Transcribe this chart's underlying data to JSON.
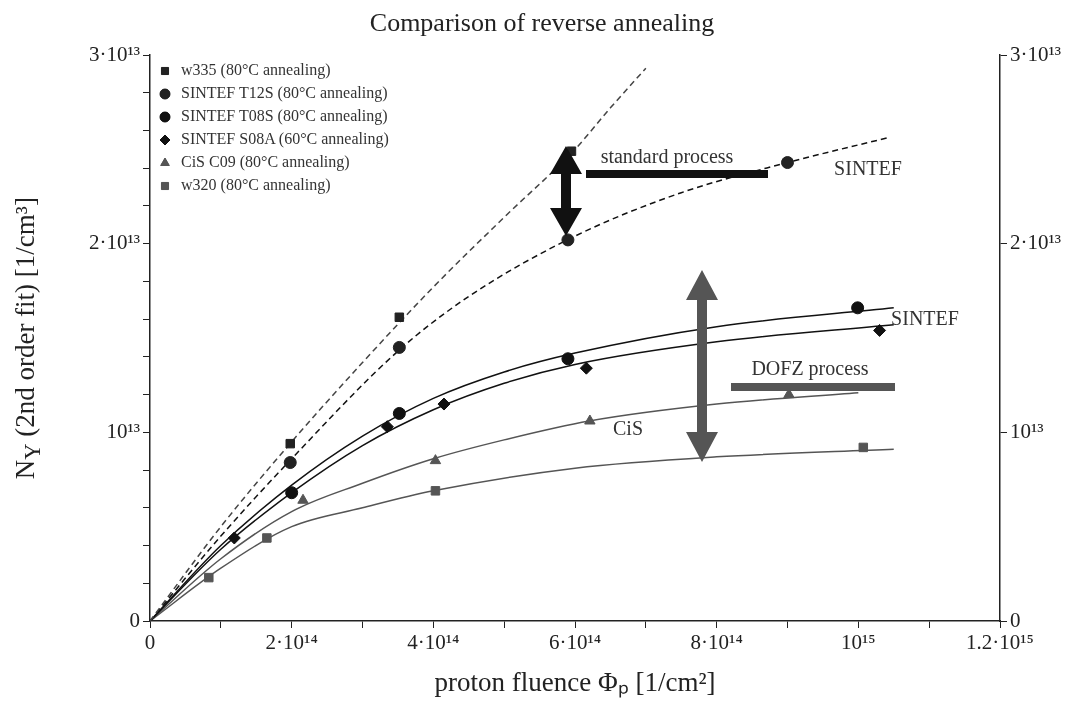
{
  "chart_data": {
    "type": "scatter",
    "title": "Comparison of reverse annealing",
    "xlabel": "proton fluence Φₚ [1/cm²]",
    "ylabel": "N$_{Y}$ (2nd order fit) [1/cm³]",
    "xlim": [
      0,
      1200000000000000.0
    ],
    "xticks": [
      0,
      {
        "value": 100000000000000.0,
        "label": null
      },
      {
        "value": 200000000000000.0,
        "label": "2·10¹⁴"
      },
      {
        "value": 300000000000000.0,
        "label": null
      },
      {
        "value": 400000000000000.0,
        "label": "4·10¹⁴"
      },
      {
        "value": 500000000000000.0,
        "label": null
      },
      {
        "value": 600000000000000.0,
        "label": "6·10¹⁴"
      },
      {
        "value": 700000000000000.0,
        "label": null
      },
      {
        "value": 800000000000000.0,
        "label": "8·10¹⁴"
      },
      {
        "value": 900000000000000.0,
        "label": null
      },
      {
        "value": 1000000000000000.0,
        "label": "10¹⁵"
      },
      {
        "value": 1100000000000000.0,
        "label": null
      },
      {
        "value": 1200000000000000.0,
        "label": "1.2·10¹⁵"
      }
    ],
    "ylim": [
      0,
      30000000000000.0
    ],
    "yticks": [
      0,
      {
        "value": 2000000000000.0,
        "label": null
      },
      {
        "value": 4000000000000.0,
        "label": null
      },
      {
        "value": 6000000000000.0,
        "label": null
      },
      {
        "value": 8000000000000.0,
        "label": null
      },
      {
        "value": 10000000000000.0,
        "label": "10¹³"
      },
      {
        "value": 12000000000000.0,
        "label": null
      },
      {
        "value": 14000000000000.0,
        "label": null
      },
      {
        "value": 16000000000000.0,
        "label": null
      },
      {
        "value": 18000000000000.0,
        "label": null
      },
      {
        "value": 20000000000000.0,
        "label": "2·10¹³"
      },
      {
        "value": 22000000000000.0,
        "label": null
      },
      {
        "value": 24000000000000.0,
        "label": null
      },
      {
        "value": 26000000000000.0,
        "label": null
      },
      {
        "value": 28000000000000.0,
        "label": null
      },
      {
        "value": 30000000000000.0,
        "label": "3·10¹³"
      }
    ],
    "y2lim": [
      0,
      30000000000000.0
    ],
    "y2ticks": [
      0,
      {
        "value": 10000000000000.0,
        "label": "10¹³"
      },
      {
        "value": 20000000000000.0,
        "label": "2·10¹³"
      },
      {
        "value": 30000000000000.0,
        "label": "3·10¹³"
      }
    ],
    "grid": false,
    "legend": "top left",
    "series": [
      {
        "name": "w335 (80°C annealing)",
        "marker": "square",
        "color": "#222222",
        "x": [
          198000000000000.0,
          352000000000000.0,
          595000000000000.0
        ],
        "values": [
          9400000000000.0,
          16100000000000.0,
          24900000000000.0
        ]
      },
      {
        "name": "SINTEF T12S (80°C annealing)",
        "marker": "circle",
        "color": "#222222",
        "x": [
          198000000000000.0,
          352000000000000.0,
          590000000000000.0,
          900000000000000.0
        ],
        "values": [
          8400000000000.0,
          14500000000000.0,
          20200000000000.0,
          24300000000000.0
        ]
      },
      {
        "name": "SINTEF T08S (80°C annealing)",
        "marker": "circle",
        "color": "#111111",
        "x": [
          200000000000000.0,
          352000000000000.0,
          590000000000000.0,
          999000000000000.0
        ],
        "values": [
          6800000000000.0,
          11000000000000.0,
          13900000000000.0,
          16600000000000.0
        ]
      },
      {
        "name": "SINTEF S08A (60°C annealing)",
        "marker": "diamond",
        "color": "#111111",
        "x": [
          119000000000000.0,
          335000000000000.0,
          415000000000000.0,
          616000000000000.0,
          1030000000000000.0
        ],
        "values": [
          4400000000000.0,
          10300000000000.0,
          11500000000000.0,
          13400000000000.0,
          15400000000000.0
        ]
      },
      {
        "name": "CiS C09 (80°C annealing)",
        "marker": "triangle",
        "color": "#555555",
        "x": [
          216000000000000.0,
          403000000000000.0,
          621000000000000.0,
          902000000000000.0
        ],
        "values": [
          6400000000000.0,
          8500000000000.0,
          10600000000000.0,
          12000000000000.0
        ]
      },
      {
        "name": "w320 (80°C annealing)",
        "marker": "square",
        "color": "#555555",
        "x": [
          83000000000000.0,
          165000000000000.0,
          403000000000000.0,
          1007000000000000.0
        ],
        "values": [
          2300000000000.0,
          4400000000000.0,
          6900000000000.0,
          9200000000000.0
        ]
      },
      {
        "type": "line",
        "marker": "none",
        "line_style": "dashed",
        "color": "#444444",
        "x": [
          0,
          100000000000000.0,
          200000000000000.0,
          300000000000000.0,
          400000000000000.0,
          500000000000000.0,
          600000000000000.0,
          650000000000000.0,
          700000000000000.0
        ],
        "values": [
          0,
          5000000000000.0,
          9500000000000.0,
          13700000000000.0,
          17700000000000.0,
          21400000000000.0,
          25000000000000.0,
          27200000000000.0,
          29300000000000.0
        ]
      },
      {
        "type": "line",
        "marker": "none",
        "line_style": "dashed",
        "color": "#111111",
        "x": [
          0,
          100000000000000.0,
          200000000000000.0,
          350000000000000.0,
          450000000000000.0,
          600000000000000.0,
          750000000000000.0,
          900000000000000.0,
          1040000000000000.0
        ],
        "values": [
          0,
          4500000000000.0,
          8600000000000.0,
          14300000000000.0,
          17200000000000.0,
          20400000000000.0,
          22700000000000.0,
          24300000000000.0,
          25600000000000.0
        ]
      },
      {
        "type": "line",
        "marker": "none",
        "line_style": "solid",
        "color": "#111111",
        "x": [
          0,
          100000000000000.0,
          200000000000000.0,
          300000000000000.0,
          400000000000000.0,
          500000000000000.0,
          600000000000000.0,
          800000000000000.0,
          1050000000000000.0
        ],
        "values": [
          0,
          4000000000000.0,
          7200000000000.0,
          9800000000000.0,
          11800000000000.0,
          13200000000000.0,
          14200000000000.0,
          15600000000000.0,
          16600000000000.0
        ]
      },
      {
        "type": "line",
        "marker": "none",
        "line_style": "solid",
        "color": "#111111",
        "x": [
          0,
          100000000000000.0,
          200000000000000.0,
          300000000000000.0,
          400000000000000.0,
          500000000000000.0,
          600000000000000.0,
          800000000000000.0,
          1050000000000000.0
        ],
        "values": [
          0,
          3800000000000.0,
          6800000000000.0,
          9300000000000.0,
          11200000000000.0,
          12600000000000.0,
          13600000000000.0,
          14800000000000.0,
          15700000000000.0
        ]
      },
      {
        "type": "line",
        "marker": "none",
        "line_style": "solid",
        "color": "#555555",
        "x": [
          0,
          100000000000000.0,
          200000000000000.0,
          300000000000000.0,
          400000000000000.0,
          500000000000000.0,
          620000000000000.0,
          800000000000000.0,
          1000000000000000.0
        ],
        "values": [
          0,
          3300000000000.0,
          5800000000000.0,
          7300000000000.0,
          8600000000000.0,
          9600000000000.0,
          10600000000000.0,
          11500000000000.0,
          12100000000000.0
        ]
      },
      {
        "type": "line",
        "marker": "none",
        "line_style": "solid",
        "color": "#555555",
        "x": [
          0,
          100000000000000.0,
          200000000000000.0,
          300000000000000.0,
          400000000000000.0,
          600000000000000.0,
          800000000000000.0,
          1050000000000000.0
        ],
        "values": [
          0,
          2800000000000.0,
          5000000000000.0,
          6000000000000.0,
          6900000000000.0,
          8100000000000.0,
          8700000000000.0,
          9100000000000.0
        ]
      }
    ],
    "annotations": [
      "standard process",
      "DOFZ process",
      "SINTEF",
      "SINTEF",
      "CiS"
    ]
  }
}
